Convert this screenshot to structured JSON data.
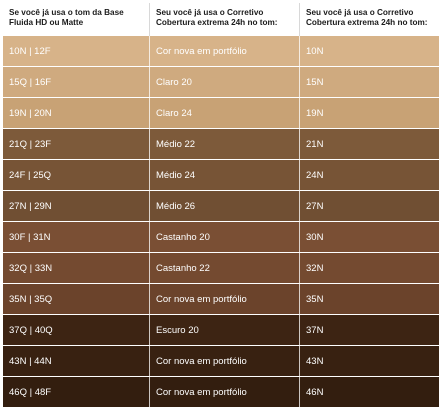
{
  "headers": [
    "Se você já usa o tom da Base Fluida HD ou Matte",
    "Seu você já usa o Corretivo Cobertura extrema 24h no tom:",
    "Seu você já usa o Corretivo Cobertura extrema 24h no tom:"
  ],
  "rows": [
    {
      "base": "10N | 12F",
      "corretivo": "Cor nova em portfólio",
      "tom": "10N",
      "color": "#d7b389"
    },
    {
      "base": "15Q | 16F",
      "corretivo": "Claro 20",
      "tom": "15N",
      "color": "#cfaa7f"
    },
    {
      "base": "19N | 20N",
      "corretivo": "Claro 24",
      "tom": "19N",
      "color": "#c8a275"
    },
    {
      "base": "21Q | 23F",
      "corretivo": "Médio 22",
      "tom": "21N",
      "color": "#7d5a3a"
    },
    {
      "base": "24F | 25Q",
      "corretivo": "Médio 24",
      "tom": "24N",
      "color": "#775436"
    },
    {
      "base": "27N | 29N",
      "corretivo": "Médio 26",
      "tom": "27N",
      "color": "#704f33"
    },
    {
      "base": "30F | 31N",
      "corretivo": "Castanho 20",
      "tom": "30N",
      "color": "#7a4f34"
    },
    {
      "base": "32Q | 33N",
      "corretivo": "Castanho 22",
      "tom": "32N",
      "color": "#744a30"
    },
    {
      "base": "35N | 35Q",
      "corretivo": "Cor nova em portfólio",
      "tom": "35N",
      "color": "#6b432b"
    },
    {
      "base": "37Q | 40Q",
      "corretivo": "Escuro 20",
      "tom": "37N",
      "color": "#3d2413"
    },
    {
      "base": "43N | 44N",
      "corretivo": "Cor nova em portfólio",
      "tom": "43N",
      "color": "#382111"
    },
    {
      "base": "46Q | 48F",
      "corretivo": "Cor nova em portfólio",
      "tom": "46N",
      "color": "#331e0f"
    }
  ]
}
